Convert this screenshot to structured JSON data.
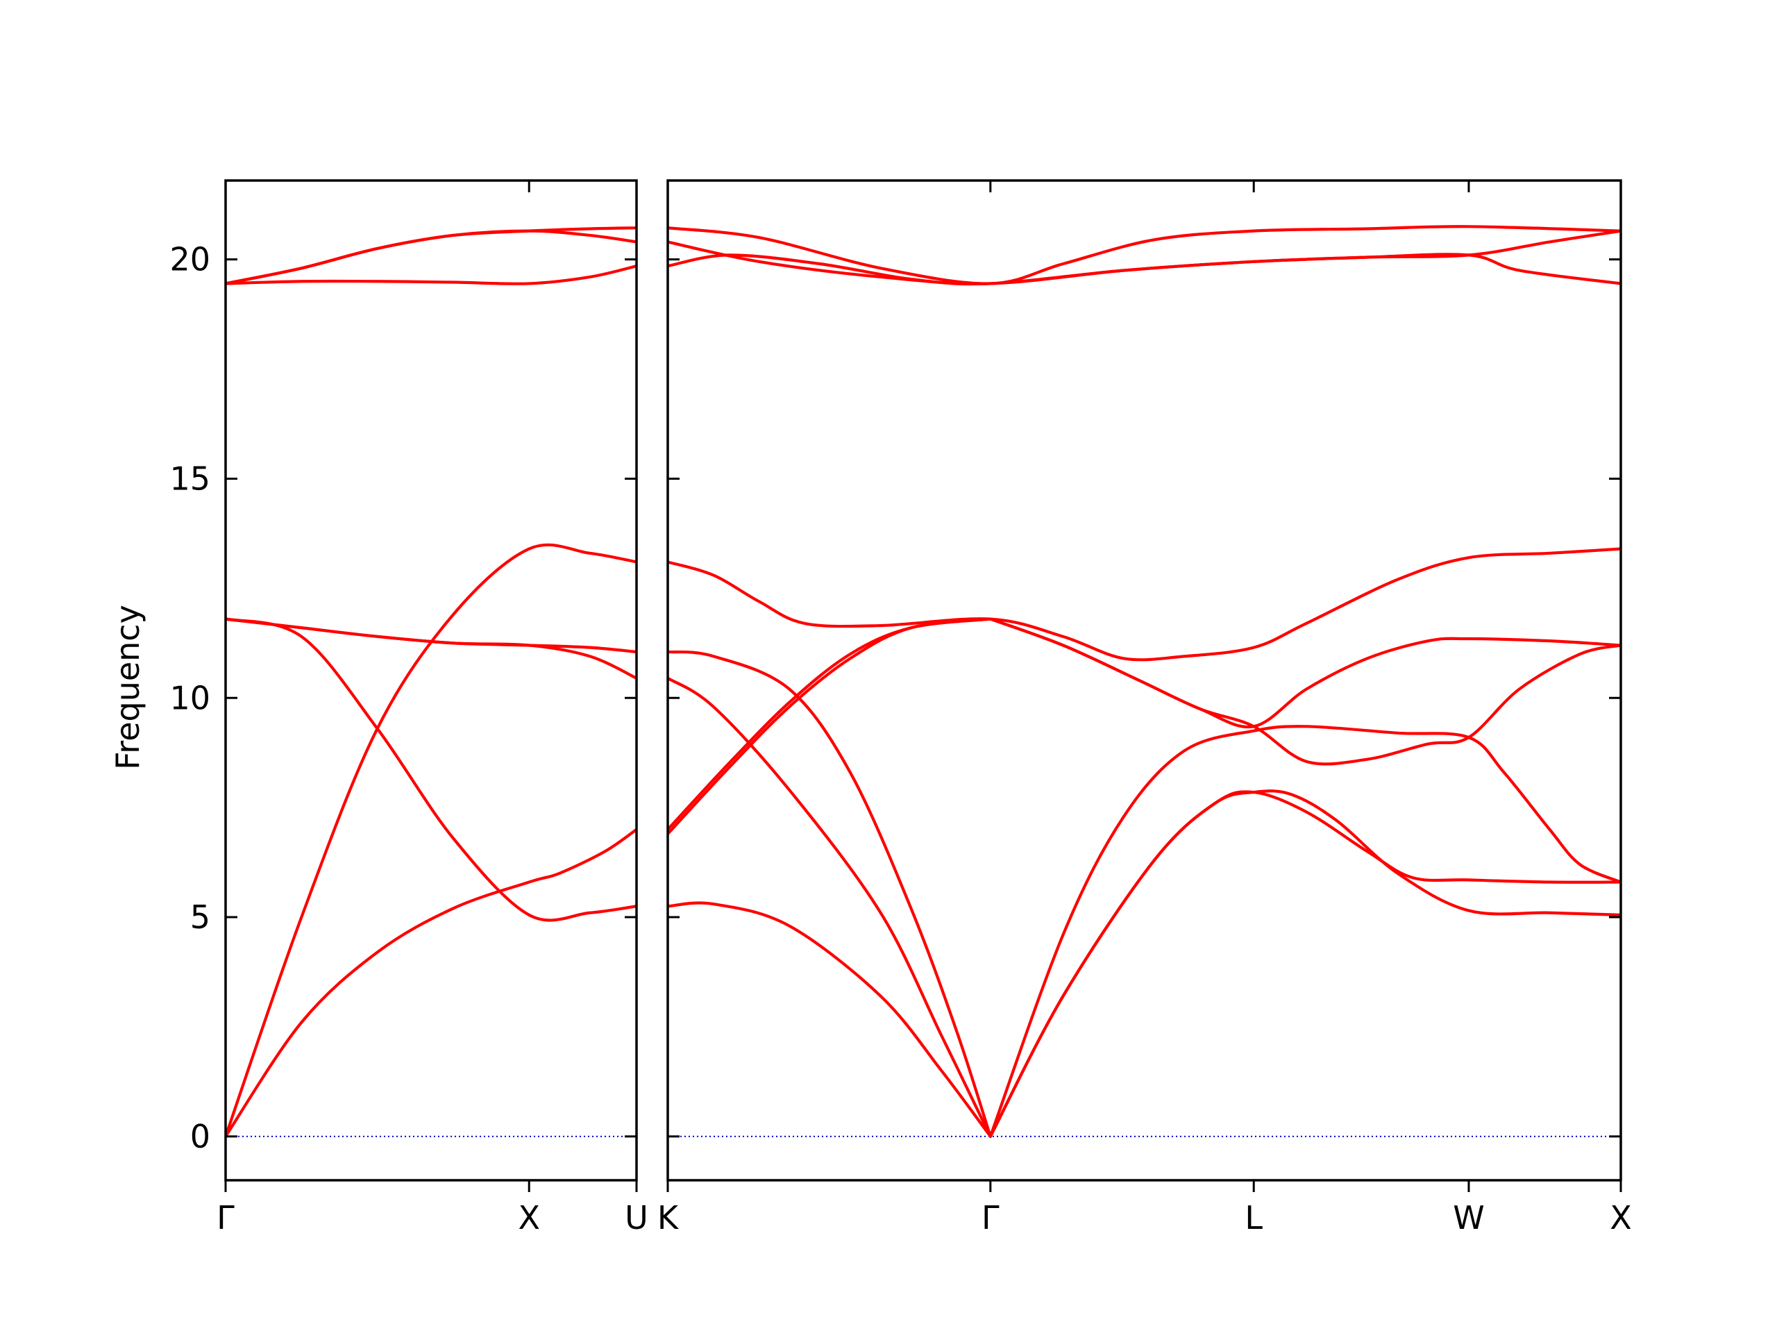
{
  "chart_data": {
    "type": "line",
    "ylabel": "Frequency",
    "ylim": [
      -1.0,
      21.8
    ],
    "yticks": [
      0,
      5,
      10,
      15,
      20
    ],
    "grid": false,
    "colors": {
      "bands": "#ff0000",
      "zero_line": "#0000cc",
      "frame": "#000000"
    },
    "panels": [
      {
        "name": "Γ-X-U",
        "xticks": [
          {
            "label": "Γ",
            "x": 0.0
          },
          {
            "label": "X",
            "x": 1.0
          },
          {
            "label": "U",
            "x": 1.354
          }
        ],
        "xlim": [
          0.0,
          1.354
        ],
        "bands": [
          [
            [
              0,
              0
            ],
            [
              0.25,
              2.6
            ],
            [
              0.5,
              4.2
            ],
            [
              0.75,
              5.2
            ],
            [
              1.0,
              5.8
            ],
            [
              1.1,
              6.0
            ],
            [
              1.25,
              6.5
            ],
            [
              1.354,
              7.0
            ]
          ],
          [
            [
              0,
              0
            ],
            [
              0.25,
              5.0
            ],
            [
              0.5,
              9.3
            ],
            [
              0.75,
              11.9
            ],
            [
              1.0,
              13.4
            ],
            [
              1.2,
              13.3
            ],
            [
              1.354,
              13.1
            ]
          ],
          [
            [
              0,
              11.8
            ],
            [
              0.25,
              11.4
            ],
            [
              0.5,
              9.3
            ],
            [
              0.75,
              6.8
            ],
            [
              1.0,
              5.05
            ],
            [
              1.2,
              5.1
            ],
            [
              1.354,
              5.25
            ]
          ],
          [
            [
              0,
              11.8
            ],
            [
              0.25,
              11.6
            ],
            [
              0.5,
              11.4
            ],
            [
              0.75,
              11.25
            ],
            [
              1.0,
              11.2
            ],
            [
              1.2,
              11.15
            ],
            [
              1.354,
              11.05
            ]
          ],
          [
            [
              0,
              11.8
            ],
            [
              0.25,
              11.6
            ],
            [
              0.5,
              11.4
            ],
            [
              0.75,
              11.25
            ],
            [
              1.0,
              11.2
            ],
            [
              1.2,
              10.95
            ],
            [
              1.354,
              10.45
            ]
          ],
          [
            [
              0,
              19.45
            ],
            [
              0.25,
              19.5
            ],
            [
              0.5,
              19.5
            ],
            [
              0.75,
              19.48
            ],
            [
              1.0,
              19.45
            ],
            [
              1.2,
              19.6
            ],
            [
              1.354,
              19.85
            ]
          ],
          [
            [
              0,
              19.45
            ],
            [
              0.25,
              19.8
            ],
            [
              0.5,
              20.25
            ],
            [
              0.75,
              20.55
            ],
            [
              1.0,
              20.65
            ],
            [
              1.2,
              20.55
            ],
            [
              1.354,
              20.4
            ]
          ],
          [
            [
              0,
              19.45
            ],
            [
              0.25,
              19.8
            ],
            [
              0.5,
              20.25
            ],
            [
              0.75,
              20.55
            ],
            [
              1.0,
              20.65
            ],
            [
              1.2,
              20.7
            ],
            [
              1.354,
              20.72
            ]
          ]
        ]
      },
      {
        "name": "K-Γ-L-W-X",
        "xticks": [
          {
            "label": "K",
            "x": 0.0
          },
          {
            "label": "Γ",
            "x": 1.061
          },
          {
            "label": "L",
            "x": 1.927
          },
          {
            "label": "W",
            "x": 2.634
          },
          {
            "label": "X",
            "x": 3.134
          }
        ],
        "xlim": [
          0.0,
          3.134
        ],
        "bands": [
          [
            [
              0,
              5.25
            ],
            [
              0.15,
              5.3
            ],
            [
              0.4,
              4.8
            ],
            [
              0.7,
              3.2
            ],
            [
              0.9,
              1.5
            ],
            [
              1.061,
              0
            ]
          ],
          [
            [
              0,
              10.45
            ],
            [
              0.15,
              9.8
            ],
            [
              0.4,
              7.9
            ],
            [
              0.7,
              5.1
            ],
            [
              0.9,
              2.3
            ],
            [
              1.061,
              0
            ]
          ],
          [
            [
              0,
              11.05
            ],
            [
              0.15,
              10.95
            ],
            [
              0.4,
              10.2
            ],
            [
              0.6,
              8.3
            ],
            [
              0.8,
              5.2
            ],
            [
              0.95,
              2.4
            ],
            [
              1.061,
              0
            ]
          ],
          [
            [
              0,
              6.9
            ],
            [
              0.2,
              8.4
            ],
            [
              0.4,
              9.8
            ],
            [
              0.6,
              10.9
            ],
            [
              0.8,
              11.6
            ],
            [
              1.061,
              11.8
            ]
          ],
          [
            [
              0,
              7.0
            ],
            [
              0.2,
              8.5
            ],
            [
              0.4,
              9.9
            ],
            [
              0.6,
              11.0
            ],
            [
              0.8,
              11.6
            ],
            [
              1.061,
              11.8
            ]
          ],
          [
            [
              0,
              13.1
            ],
            [
              0.15,
              12.8
            ],
            [
              0.3,
              12.2
            ],
            [
              0.45,
              11.7
            ],
            [
              0.7,
              11.65
            ],
            [
              1.061,
              11.8
            ],
            [
              1.3,
              11.4
            ],
            [
              1.5,
              10.9
            ],
            [
              1.7,
              10.95
            ],
            [
              1.927,
              11.15
            ],
            [
              2.1,
              11.7
            ],
            [
              2.4,
              12.7
            ],
            [
              2.634,
              13.2
            ],
            [
              2.9,
              13.3
            ],
            [
              3.134,
              13.4
            ]
          ],
          [
            [
              0,
              19.85
            ],
            [
              0.2,
              20.1
            ],
            [
              0.5,
              19.9
            ],
            [
              0.8,
              19.55
            ],
            [
              1.061,
              19.45
            ],
            [
              1.5,
              19.75
            ],
            [
              1.927,
              19.95
            ],
            [
              2.3,
              20.05
            ],
            [
              2.634,
              20.1
            ],
            [
              2.9,
              20.4
            ],
            [
              3.134,
              20.65
            ]
          ],
          [
            [
              0,
              20.4
            ],
            [
              0.3,
              19.95
            ],
            [
              0.7,
              19.6
            ],
            [
              1.061,
              19.45
            ],
            [
              1.5,
              19.75
            ],
            [
              1.927,
              19.95
            ],
            [
              2.3,
              20.05
            ],
            [
              2.634,
              20.1
            ],
            [
              2.8,
              19.75
            ],
            [
              3.134,
              19.45
            ]
          ],
          [
            [
              0,
              20.72
            ],
            [
              0.3,
              20.5
            ],
            [
              0.7,
              19.8
            ],
            [
              1.061,
              19.45
            ],
            [
              1.3,
              19.9
            ],
            [
              1.6,
              20.45
            ],
            [
              1.927,
              20.65
            ],
            [
              2.3,
              20.7
            ],
            [
              2.634,
              20.75
            ],
            [
              3.134,
              20.65
            ]
          ],
          [
            [
              1.061,
              0
            ],
            [
              1.3,
              4.6
            ],
            [
              1.5,
              7.3
            ],
            [
              1.7,
              8.8
            ],
            [
              1.927,
              9.25
            ],
            [
              2.1,
              9.35
            ],
            [
              2.4,
              9.2
            ],
            [
              2.634,
              9.1
            ],
            [
              2.75,
              8.3
            ],
            [
              2.9,
              7.0
            ],
            [
              3.0,
              6.2
            ],
            [
              3.134,
              5.8
            ]
          ],
          [
            [
              1.061,
              0
            ],
            [
              1.3,
              3.2
            ],
            [
              1.6,
              6.3
            ],
            [
              1.8,
              7.6
            ],
            [
              1.927,
              7.85
            ],
            [
              2.1,
              7.4
            ],
            [
              2.3,
              6.5
            ],
            [
              2.45,
              5.9
            ],
            [
              2.634,
              5.85
            ],
            [
              2.9,
              5.8
            ],
            [
              3.134,
              5.8
            ]
          ],
          [
            [
              1.061,
              0
            ],
            [
              1.3,
              3.2
            ],
            [
              1.6,
              6.3
            ],
            [
              1.8,
              7.6
            ],
            [
              1.927,
              7.85
            ],
            [
              2.05,
              7.8
            ],
            [
              2.2,
              7.2
            ],
            [
              2.4,
              6.0
            ],
            [
              2.634,
              5.15
            ],
            [
              2.9,
              5.1
            ],
            [
              3.134,
              5.05
            ]
          ],
          [
            [
              1.061,
              11.8
            ],
            [
              1.3,
              11.2
            ],
            [
              1.55,
              10.4
            ],
            [
              1.75,
              9.75
            ],
            [
              1.927,
              9.35
            ],
            [
              2.1,
              8.55
            ],
            [
              2.3,
              8.6
            ],
            [
              2.5,
              8.95
            ],
            [
              2.634,
              9.1
            ],
            [
              2.8,
              10.2
            ],
            [
              3.0,
              11.0
            ],
            [
              3.134,
              11.2
            ]
          ],
          [
            [
              1.061,
              11.8
            ],
            [
              1.3,
              11.2
            ],
            [
              1.55,
              10.4
            ],
            [
              1.75,
              9.75
            ],
            [
              1.927,
              9.35
            ],
            [
              2.1,
              10.2
            ],
            [
              2.3,
              10.9
            ],
            [
              2.5,
              11.3
            ],
            [
              2.634,
              11.35
            ],
            [
              2.9,
              11.3
            ],
            [
              3.134,
              11.2
            ]
          ]
        ]
      }
    ]
  }
}
